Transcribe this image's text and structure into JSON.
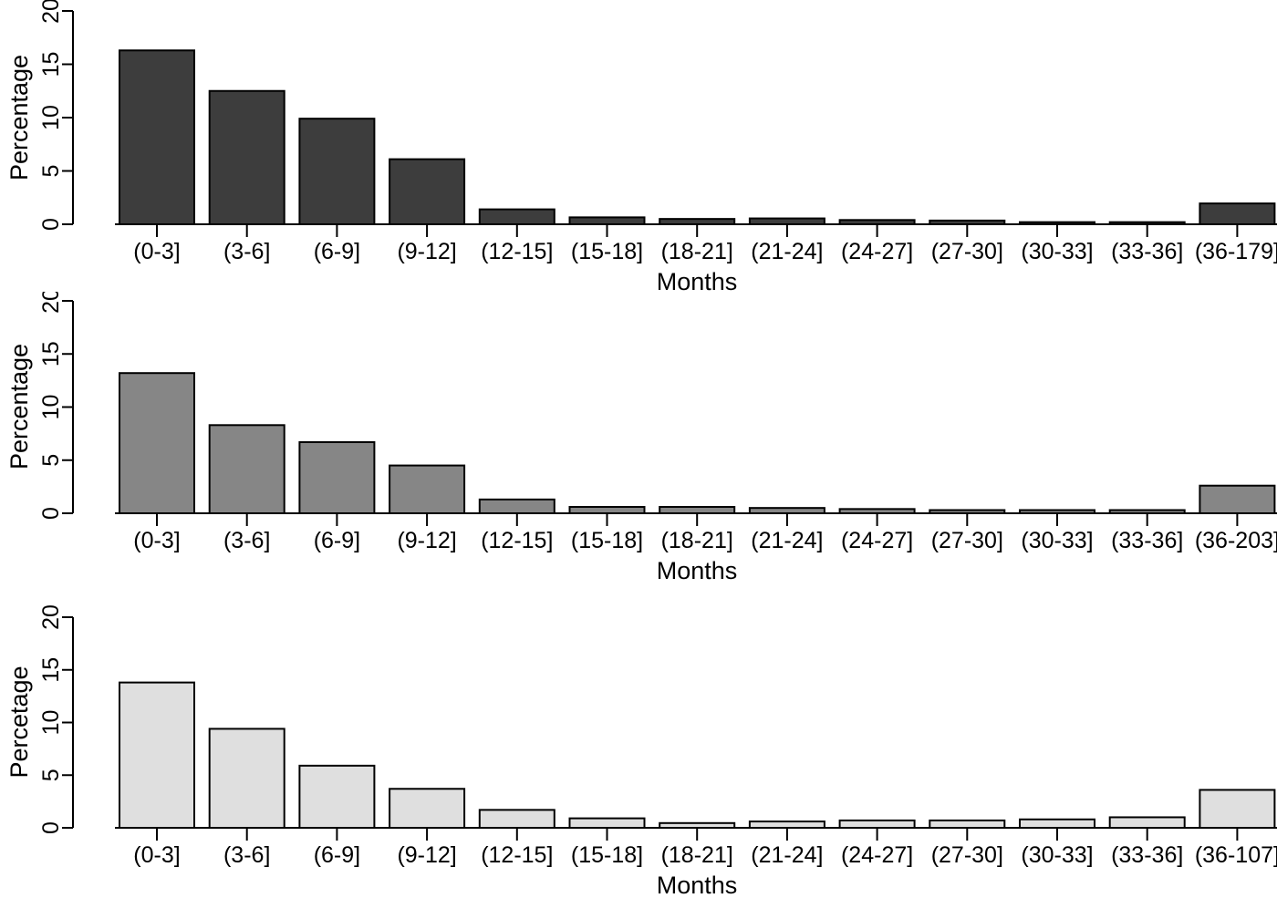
{
  "figure": {
    "background": "#ffffff",
    "text_color": "#000000",
    "panels_count": 3
  },
  "chart_data": [
    {
      "type": "bar",
      "panel": "top",
      "title": "",
      "xlabel": "Months",
      "ylabel": "Percentage",
      "ylim": [
        0,
        20
      ],
      "yticks": [
        0,
        5,
        10,
        15,
        20
      ],
      "grid": false,
      "legend": "none",
      "bar_fill": "#3d3d3d",
      "bar_border": "#000000",
      "categories": [
        "(0-3]",
        "(3-6]",
        "(6-9]",
        "(9-12]",
        "(12-15]",
        "(15-18]",
        "(18-21]",
        "(21-24]",
        "(24-27]",
        "(27-30]",
        "(30-33]",
        "(33-36]",
        "(36-179]"
      ],
      "values": [
        16.3,
        12.5,
        9.9,
        6.1,
        1.4,
        0.65,
        0.5,
        0.55,
        0.4,
        0.35,
        0.2,
        0.2,
        1.95
      ]
    },
    {
      "type": "bar",
      "panel": "middle",
      "title": "",
      "xlabel": "Months",
      "ylabel": "Percentage",
      "ylim": [
        0,
        20
      ],
      "yticks": [
        0,
        5,
        10,
        15,
        20
      ],
      "grid": false,
      "legend": "none",
      "bar_fill": "#868686",
      "bar_border": "#000000",
      "categories": [
        "(0-3]",
        "(3-6]",
        "(6-9]",
        "(9-12]",
        "(12-15]",
        "(15-18]",
        "(18-21]",
        "(21-24]",
        "(24-27]",
        "(27-30]",
        "(30-33]",
        "(33-36]",
        "(36-203]"
      ],
      "values": [
        13.2,
        8.3,
        6.7,
        4.5,
        1.3,
        0.6,
        0.6,
        0.5,
        0.4,
        0.3,
        0.3,
        0.3,
        2.6
      ]
    },
    {
      "type": "bar",
      "panel": "bottom",
      "title": "",
      "xlabel": "Months",
      "ylabel": "Percetage",
      "ylim": [
        0,
        20
      ],
      "yticks": [
        0,
        5,
        10,
        15,
        20
      ],
      "grid": false,
      "legend": "none",
      "bar_fill": "#dfdfdf",
      "bar_border": "#000000",
      "categories": [
        "(0-3]",
        "(3-6]",
        "(6-9]",
        "(9-12]",
        "(12-15]",
        "(15-18]",
        "(18-21]",
        "(21-24]",
        "(24-27]",
        "(27-30]",
        "(30-33]",
        "(33-36]",
        "(36-107]"
      ],
      "values": [
        13.8,
        9.4,
        5.9,
        3.7,
        1.7,
        0.9,
        0.45,
        0.6,
        0.7,
        0.7,
        0.8,
        1.0,
        3.6
      ]
    }
  ]
}
